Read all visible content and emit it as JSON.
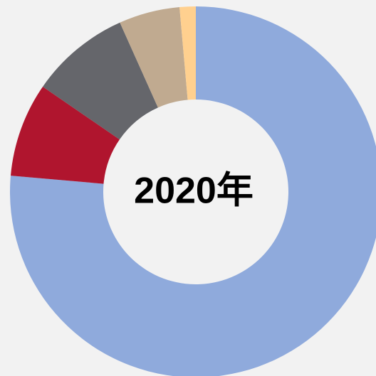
{
  "chart_data": {
    "type": "donut",
    "center_label": "2020年",
    "categories": [
      null,
      null,
      null,
      null,
      null
    ],
    "values": [
      76.4,
      8.2,
      8.7,
      5.3,
      1.4
    ],
    "colors": [
      "#8faadc",
      "#b0152e",
      "#65666b",
      "#c0aa90",
      "#ffd08f"
    ]
  }
}
